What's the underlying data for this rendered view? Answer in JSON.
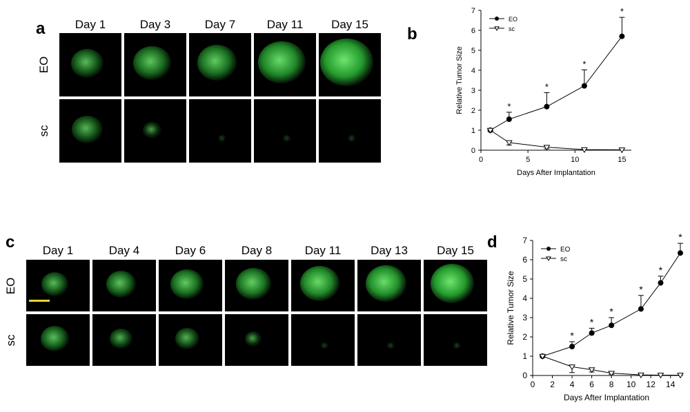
{
  "panel_a": {
    "letter": "a",
    "days": [
      "Day 1",
      "Day 3",
      "Day 7",
      "Day 11",
      "Day 15"
    ],
    "rows": [
      "EO",
      "sc"
    ],
    "eo_intensity": [
      0.45,
      0.6,
      0.65,
      0.85,
      1.0
    ],
    "sc_intensity": [
      0.4,
      0.08,
      0.04,
      0.03,
      0.02
    ]
  },
  "panel_c": {
    "letter": "c",
    "days": [
      "Day 1",
      "Day 4",
      "Day 6",
      "Day 8",
      "Day 11",
      "Day 13",
      "Day 15"
    ],
    "rows": [
      "EO",
      "sc"
    ],
    "eo_intensity": [
      0.45,
      0.55,
      0.65,
      0.7,
      0.85,
      0.9,
      1.0
    ],
    "sc_intensity": [
      0.5,
      0.3,
      0.35,
      0.12,
      0.05,
      0.04,
      0.02
    ],
    "scale_bar_color": "#e8d533"
  },
  "chart_data": [
    {
      "id": "b",
      "letter": "b",
      "type": "line",
      "xlabel": "Days After Implantation",
      "ylabel": "Relative Tumor Size",
      "xlim": [
        0,
        16
      ],
      "ylim": [
        0,
        7
      ],
      "xticks": [
        0,
        5,
        10,
        15
      ],
      "yticks": [
        0,
        1,
        2,
        3,
        4,
        5,
        6,
        7
      ],
      "legend_position": "top-left",
      "series": [
        {
          "name": "EO",
          "marker": "filled-circle",
          "x": [
            1,
            3,
            7,
            11,
            15
          ],
          "y": [
            1.0,
            1.55,
            2.18,
            3.22,
            5.7
          ],
          "err": [
            0.05,
            0.35,
            0.7,
            0.8,
            0.95
          ]
        },
        {
          "name": "sc",
          "marker": "open-triangle",
          "x": [
            1,
            3,
            7,
            11,
            15
          ],
          "y": [
            1.0,
            0.38,
            0.15,
            0.03,
            0.02
          ],
          "err": [
            0.05,
            0.12,
            0.08,
            0.02,
            0.01
          ]
        }
      ],
      "annotations": [
        {
          "text": "*",
          "x": 3
        },
        {
          "text": "*",
          "x": 7
        },
        {
          "text": "*",
          "x": 11
        },
        {
          "text": "*",
          "x": 15
        }
      ]
    },
    {
      "id": "d",
      "letter": "d",
      "type": "line",
      "xlabel": "Days After Implantation",
      "ylabel": "Relative Tumor Size",
      "xlim": [
        0,
        15
      ],
      "ylim": [
        0,
        7
      ],
      "xticks": [
        0,
        2,
        4,
        6,
        8,
        10,
        12,
        14
      ],
      "yticks": [
        0,
        1,
        2,
        3,
        4,
        5,
        6,
        7
      ],
      "legend_position": "top-left",
      "series": [
        {
          "name": "EO",
          "marker": "filled-circle",
          "x": [
            1,
            4,
            6,
            8,
            11,
            13,
            15
          ],
          "y": [
            1.0,
            1.5,
            2.2,
            2.6,
            3.45,
            4.8,
            6.35
          ],
          "err": [
            0.05,
            0.25,
            0.25,
            0.4,
            0.7,
            0.35,
            0.5
          ]
        },
        {
          "name": "sc",
          "marker": "open-triangle",
          "x": [
            1,
            4,
            6,
            8,
            11,
            13,
            15
          ],
          "y": [
            1.0,
            0.45,
            0.3,
            0.12,
            0.03,
            0.02,
            0.02
          ],
          "err": [
            0.05,
            0.3,
            0.12,
            0.06,
            0.02,
            0.01,
            0.01
          ]
        }
      ],
      "annotations": [
        {
          "text": "*",
          "x": 4
        },
        {
          "text": "*",
          "x": 6
        },
        {
          "text": "*",
          "x": 8
        },
        {
          "text": "*",
          "x": 11
        },
        {
          "text": "*",
          "x": 13
        },
        {
          "text": "*",
          "x": 15
        }
      ]
    }
  ]
}
